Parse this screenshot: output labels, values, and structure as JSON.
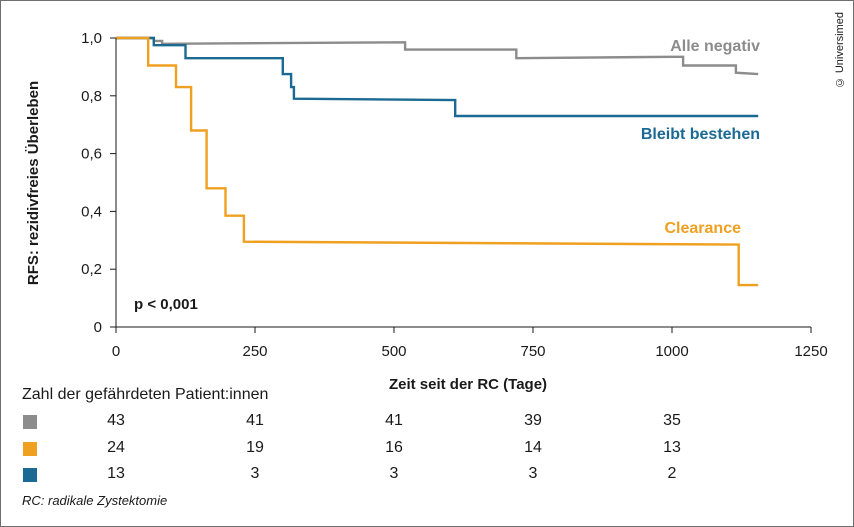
{
  "copyright": "© Universimed",
  "chart_data": {
    "type": "line",
    "step": true,
    "xlabel": "Zeit seit der RC (Tage)",
    "ylabel": "RFS: rezidivfreies Überleben",
    "xlim": [
      0,
      1250
    ],
    "ylim": [
      0,
      1.0
    ],
    "xticks": [
      0,
      250,
      500,
      750,
      1000,
      1250
    ],
    "xtick_labels": [
      "0",
      "250",
      "500",
      "750",
      "1000",
      "1250"
    ],
    "yticks": [
      0,
      0.2,
      0.4,
      0.6,
      0.8,
      1.0
    ],
    "ytick_labels": [
      "0",
      "0,2",
      "0,4",
      "0,6",
      "0,8",
      "1,0"
    ],
    "grid": false,
    "annotation": "p < 0,001",
    "series": [
      {
        "name": "Alle negativ",
        "color": "#8c8c8c",
        "points": [
          [
            0,
            1.0
          ],
          [
            68,
            1.0
          ],
          [
            68,
            0.99
          ],
          [
            83,
            0.99
          ],
          [
            83,
            0.98
          ],
          [
            520,
            0.985
          ],
          [
            520,
            0.96
          ],
          [
            720,
            0.96
          ],
          [
            720,
            0.93
          ],
          [
            1000,
            0.935
          ],
          [
            1020,
            0.935
          ],
          [
            1020,
            0.905
          ],
          [
            1115,
            0.905
          ],
          [
            1115,
            0.88
          ],
          [
            1155,
            0.875
          ]
        ]
      },
      {
        "name": "Bleibt bestehen",
        "color": "#1b6a94",
        "points": [
          [
            0,
            1.0
          ],
          [
            68,
            1.0
          ],
          [
            68,
            0.975
          ],
          [
            125,
            0.975
          ],
          [
            125,
            0.93
          ],
          [
            300,
            0.93
          ],
          [
            300,
            0.875
          ],
          [
            315,
            0.875
          ],
          [
            315,
            0.83
          ],
          [
            320,
            0.83
          ],
          [
            320,
            0.79
          ],
          [
            610,
            0.785
          ],
          [
            610,
            0.73
          ],
          [
            1155,
            0.73
          ]
        ]
      },
      {
        "name": "Clearance",
        "color": "#f0a020",
        "points": [
          [
            0,
            1.0
          ],
          [
            58,
            1.0
          ],
          [
            58,
            0.905
          ],
          [
            108,
            0.905
          ],
          [
            108,
            0.83
          ],
          [
            135,
            0.83
          ],
          [
            135,
            0.68
          ],
          [
            163,
            0.68
          ],
          [
            163,
            0.48
          ],
          [
            197,
            0.48
          ],
          [
            197,
            0.385
          ],
          [
            230,
            0.385
          ],
          [
            230,
            0.295
          ],
          [
            1120,
            0.285
          ],
          [
            1120,
            0.145
          ],
          [
            1155,
            0.145
          ]
        ]
      }
    ]
  },
  "risk_table": {
    "title": "Zahl der gefährdeten Patient:innen",
    "x": [
      0,
      250,
      500,
      750,
      1000
    ],
    "rows": [
      {
        "color": "#8c8c8c",
        "values": [
          "43",
          "41",
          "41",
          "39",
          "35"
        ]
      },
      {
        "color": "#f0a020",
        "values": [
          "24",
          "19",
          "16",
          "14",
          "13"
        ]
      },
      {
        "color": "#1b6a94",
        "values": [
          "13",
          "3",
          "3",
          "3",
          "2"
        ]
      }
    ]
  },
  "footnote": "RC: radikale Zystektomie"
}
